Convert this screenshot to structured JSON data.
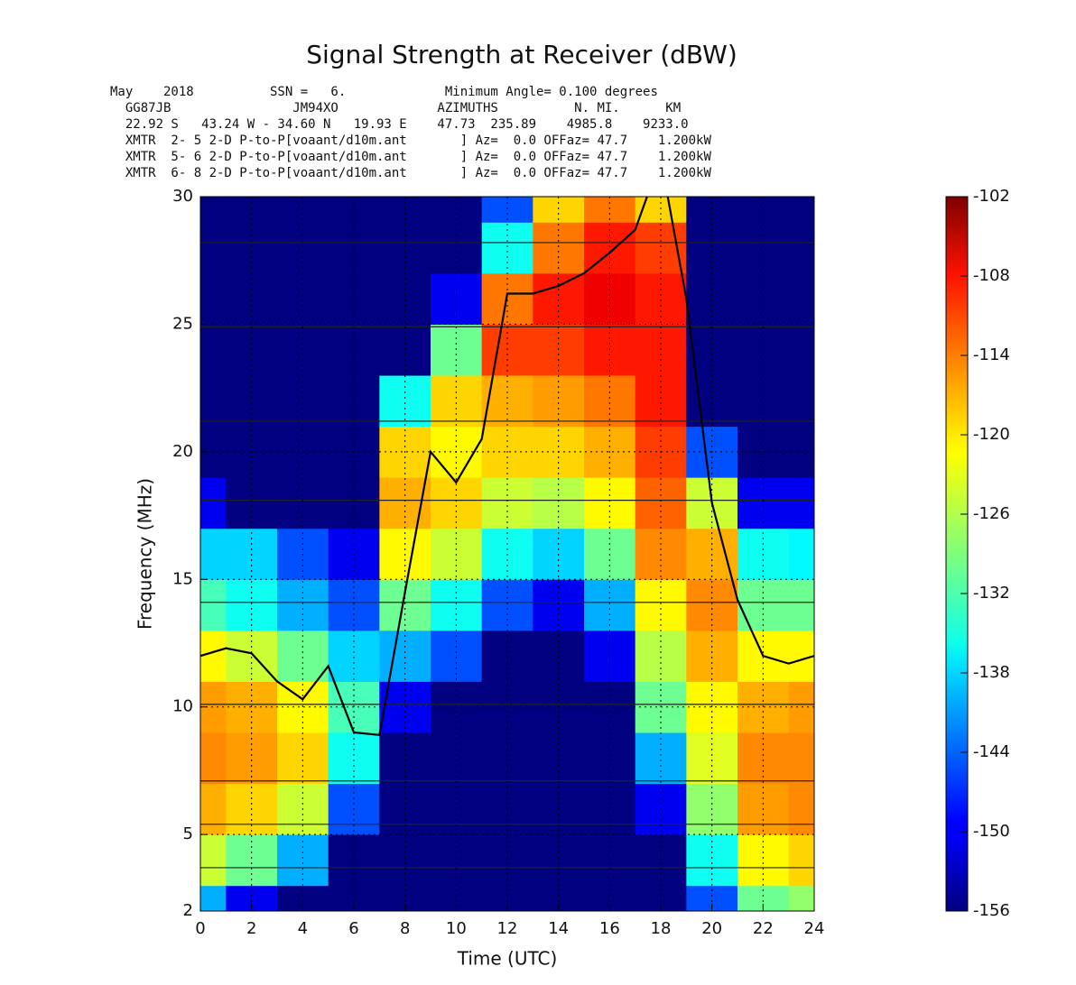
{
  "chart_data": {
    "type": "heatmap",
    "title": "Signal Strength at Receiver (dBW)",
    "header_lines": [
      "May    2018          SSN =   6.             Minimum Angle= 0.100 degrees",
      "  GG87JB                JM94XO             AZIMUTHS          N. MI.      KM",
      "  22.92 S   43.24 W - 34.60 N   19.93 E    47.73  235.89    4985.8    9233.0",
      "  XMTR  2- 5 2-D P-to-P[voaant/d10m.ant       ] Az=  0.0 OFFaz= 47.7    1.200kW",
      "  XMTR  5- 6 2-D P-to-P[voaant/d10m.ant       ] Az=  0.0 OFFaz= 47.7    1.200kW",
      "  XMTR  6- 8 2-D P-to-P[voaant/d10m.ant       ] Az=  0.0 OFFaz= 47.7    1.200kW"
    ],
    "x_label": "Time (UTC)",
    "y_label": "Frequency (MHz)",
    "xlim": [
      0,
      24
    ],
    "xticks": [
      0,
      2,
      4,
      6,
      8,
      10,
      12,
      14,
      16,
      18,
      20,
      22,
      24
    ],
    "ylim": [
      2,
      30
    ],
    "yticks": [
      2,
      5,
      10,
      15,
      20,
      25,
      30
    ],
    "grid": true,
    "x": [
      0,
      2,
      4,
      6,
      8,
      10,
      12,
      14,
      16,
      18,
      20,
      22,
      24
    ],
    "y": [
      2,
      4,
      6,
      8,
      10,
      12,
      14,
      16,
      18,
      20,
      22,
      24,
      26,
      28,
      30
    ],
    "z": [
      [
        -140,
        -125,
        -118,
        -116,
        -117,
        -122,
        -132,
        -138,
        -150,
        -156,
        -156,
        -156,
        -156,
        -156,
        -156
      ],
      [
        -150,
        -130,
        -120,
        -117,
        -118,
        -125,
        -135,
        -138,
        -156,
        -156,
        -156,
        -156,
        -156,
        -156,
        -156
      ],
      [
        -156,
        -140,
        -125,
        -120,
        -122,
        -130,
        -140,
        -145,
        -156,
        -156,
        -156,
        -156,
        -156,
        -156,
        -156
      ],
      [
        -156,
        -156,
        -145,
        -135,
        -132,
        -138,
        -145,
        -150,
        -156,
        -156,
        -156,
        -156,
        -156,
        -156,
        -156
      ],
      [
        -156,
        -156,
        -156,
        -156,
        -150,
        -140,
        -130,
        -122,
        -118,
        -120,
        -135,
        -156,
        -156,
        -156,
        -156
      ],
      [
        -156,
        -156,
        -156,
        -156,
        -156,
        -145,
        -135,
        -125,
        -120,
        -122,
        -120,
        -130,
        -150,
        -156,
        -156
      ],
      [
        -156,
        -156,
        -156,
        -156,
        -156,
        -156,
        -145,
        -135,
        -125,
        -120,
        -118,
        -112,
        -115,
        -135,
        -145
      ],
      [
        -156,
        -156,
        -156,
        -156,
        -156,
        -156,
        -150,
        -138,
        -126,
        -120,
        -117,
        -112,
        -110,
        -115,
        -120
      ],
      [
        -156,
        -156,
        -156,
        -156,
        -156,
        -150,
        -140,
        -130,
        -122,
        -118,
        -115,
        -110,
        -108,
        -110,
        -115
      ],
      [
        -156,
        -156,
        -150,
        -140,
        -130,
        -126,
        -122,
        -116,
        -114,
        -112,
        -110,
        -110,
        -110,
        -112,
        -120
      ],
      [
        -145,
        -135,
        -128,
        -124,
        -122,
        -118,
        -116,
        -118,
        -125,
        -145,
        -156,
        -156,
        -156,
        -156,
        -156
      ],
      [
        -130,
        -122,
        -117,
        -116,
        -118,
        -122,
        -130,
        -135,
        -150,
        -156,
        -156,
        -156,
        -156,
        -156,
        -156
      ],
      [
        -128,
        -120,
        -116,
        -116,
        -117,
        -122,
        -130,
        -136,
        -150,
        -156,
        -156,
        -156,
        -156,
        -156,
        -156
      ]
    ],
    "line": {
      "color": "#000000",
      "x": [
        0,
        1,
        2,
        3,
        4,
        5,
        6,
        7,
        8,
        9,
        10,
        11,
        12,
        13,
        14,
        15,
        16,
        17,
        18,
        19,
        20,
        21,
        22,
        23,
        24
      ],
      "values": [
        12.0,
        12.3,
        12.1,
        11.0,
        10.3,
        11.6,
        9.0,
        8.9,
        14.5,
        20.0,
        18.8,
        20.5,
        26.2,
        26.2,
        26.5,
        27.0,
        27.8,
        28.7,
        31.5,
        26.0,
        18.0,
        14.2,
        12.0,
        11.7,
        12.0
      ]
    },
    "hlines": [
      28.2,
      24.9,
      21.2,
      18.1,
      14.1,
      10.1,
      7.1,
      5.4,
      3.7
    ],
    "colorbar": {
      "lim": [
        -156,
        -102
      ],
      "ticks": [
        -156,
        -150,
        -144,
        -138,
        -132,
        -126,
        -120,
        -114,
        -108,
        -102
      ]
    }
  }
}
